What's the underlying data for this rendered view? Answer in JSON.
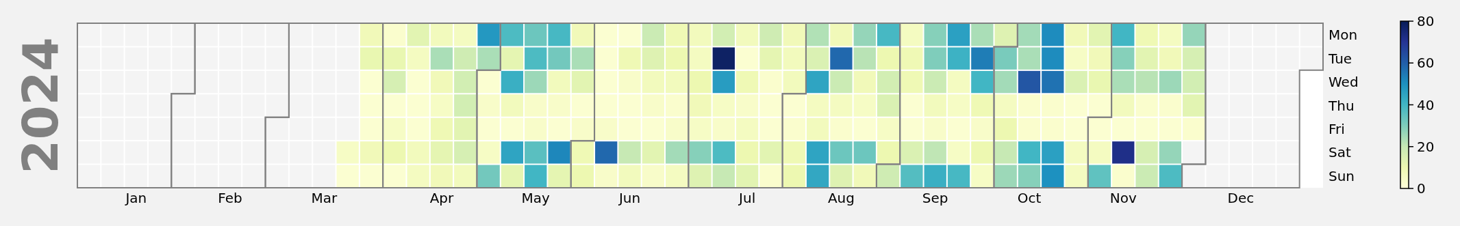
{
  "chart_data": {
    "type": "heatmap",
    "ylabel": "2024",
    "categories": [
      null,
      null,
      "Jan",
      null,
      null,
      null,
      "Feb",
      null,
      null,
      null,
      "Mar",
      null,
      null,
      null,
      null,
      "Apr",
      null,
      null,
      null,
      "May",
      null,
      null,
      null,
      "Jun",
      null,
      null,
      null,
      null,
      "Jul",
      null,
      null,
      null,
      "Aug",
      null,
      null,
      null,
      "Sep",
      null,
      null,
      null,
      "Oct",
      null,
      null,
      null,
      "Nov",
      null,
      null,
      null,
      null,
      "Dec",
      null,
      null,
      null
    ],
    "y_categories": [
      "Mon",
      "Tue",
      "Wed",
      "Thu",
      "Fri",
      "Sat",
      "Sun"
    ],
    "cells": [
      [
        null,
        null,
        null,
        null,
        null,
        null,
        null,
        null,
        null,
        null,
        null,
        null,
        8,
        3,
        13,
        7,
        6,
        48,
        38,
        33,
        39,
        8,
        2,
        2,
        19,
        9,
        7,
        17,
        7,
        18,
        8,
        23,
        8,
        27,
        39,
        6,
        29,
        46,
        24,
        14,
        25,
        51,
        8,
        13,
        40,
        9,
        6,
        27,
        null,
        null,
        null,
        null,
        null
      ],
      [
        null,
        null,
        null,
        null,
        null,
        null,
        null,
        null,
        null,
        null,
        null,
        null,
        11,
        11,
        6,
        24,
        18,
        24,
        12,
        38,
        32,
        24,
        2,
        9,
        14,
        10,
        6,
        78,
        2,
        12,
        7,
        15,
        58,
        22,
        10,
        9,
        30,
        41,
        54,
        31,
        24,
        51,
        5,
        8,
        29,
        13,
        8,
        16,
        null,
        null,
        null,
        null,
        null
      ],
      [
        null,
        null,
        null,
        null,
        null,
        null,
        null,
        null,
        null,
        null,
        null,
        null,
        2,
        16,
        2,
        8,
        17,
        2,
        42,
        26,
        7,
        13,
        2,
        4,
        7,
        7,
        10,
        47,
        9,
        3,
        7,
        45,
        19,
        8,
        17,
        9,
        19,
        6,
        40,
        25,
        62,
        56,
        15,
        11,
        24,
        22,
        26,
        17,
        null,
        null,
        null,
        null,
        null
      ],
      [
        null,
        null,
        null,
        null,
        null,
        null,
        null,
        null,
        null,
        null,
        null,
        null,
        2,
        2,
        2,
        5,
        17,
        4,
        7,
        4,
        4,
        2,
        2,
        2,
        4,
        3,
        8,
        5,
        4,
        2,
        2,
        6,
        6,
        5,
        15,
        2,
        7,
        5,
        9,
        6,
        3,
        3,
        2,
        2,
        7,
        3,
        3,
        13,
        null,
        null,
        null,
        null,
        null
      ],
      [
        null,
        null,
        null,
        null,
        null,
        null,
        null,
        null,
        null,
        null,
        null,
        null,
        2,
        5,
        2,
        9,
        13,
        2,
        2,
        4,
        2,
        4,
        4,
        2,
        2,
        4,
        5,
        4,
        6,
        2,
        3,
        7,
        3,
        2,
        5,
        2,
        4,
        2,
        4,
        10,
        3,
        3,
        2,
        2,
        2,
        2,
        2,
        3,
        null,
        null,
        null,
        null,
        null
      ],
      [
        null,
        null,
        null,
        null,
        null,
        null,
        null,
        null,
        null,
        null,
        null,
        5,
        8,
        10,
        7,
        12,
        16,
        5,
        45,
        36,
        52,
        9,
        58,
        20,
        13,
        25,
        29,
        38,
        10,
        13,
        9,
        45,
        33,
        33,
        10,
        15,
        21,
        5,
        10,
        20,
        40,
        46,
        6,
        6,
        72,
        16,
        27,
        null,
        null,
        null,
        null,
        null,
        null
      ],
      [
        null,
        null,
        null,
        null,
        null,
        null,
        null,
        null,
        null,
        null,
        null,
        2,
        2,
        2,
        6,
        8,
        7,
        32,
        12,
        40,
        12,
        10,
        4,
        7,
        4,
        6,
        14,
        20,
        13,
        3,
        10,
        44,
        14,
        8,
        18,
        37,
        42,
        39,
        5,
        26,
        29,
        50,
        6,
        35,
        3,
        19,
        38,
        null,
        null,
        null,
        null,
        null,
        null
      ]
    ],
    "clim": [
      0,
      80
    ],
    "cticks": [
      0,
      20,
      40,
      60,
      80
    ]
  }
}
